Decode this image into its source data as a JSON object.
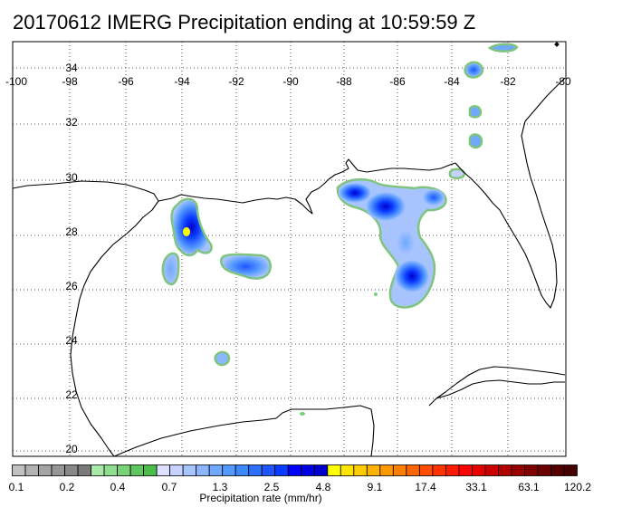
{
  "title": "20170612 IMERG Precipitation ending at 10:59:59 Z",
  "map": {
    "lon_range": [
      -100,
      -80
    ],
    "lat_range": [
      19.6,
      35.3
    ],
    "lon_ticks": [
      "-100",
      "-98",
      "-96",
      "-94",
      "-92",
      "-90",
      "-88",
      "-86",
      "-84",
      "-82",
      "-80"
    ],
    "lat_ticks": [
      "34",
      "32",
      "30",
      "28",
      "26",
      "24",
      "22",
      "20"
    ],
    "grid": "dotted"
  },
  "colorbar": {
    "colors": [
      "#c0c0c0",
      "#b2b2b2",
      "#a4a4a4",
      "#969696",
      "#888888",
      "#7a7a7a",
      "#a8e8a8",
      "#90dd90",
      "#78d278",
      "#60c760",
      "#4cbc4c",
      "#dde0ff",
      "#c8d2ff",
      "#a8c4ff",
      "#8cb6ff",
      "#70a8ff",
      "#5599ff",
      "#3c88ff",
      "#2c70ff",
      "#1f55ff",
      "#0a3cff",
      "#0000ff",
      "#0000e6",
      "#0000cc",
      "#ffff00",
      "#ffe600",
      "#ffcc00",
      "#ffb300",
      "#ff9900",
      "#ff8000",
      "#ff6600",
      "#ff4d00",
      "#ff3300",
      "#ff1a00",
      "#ff0000",
      "#e60000",
      "#cc0000",
      "#b30000",
      "#990000",
      "#800000",
      "#6a0000",
      "#550000",
      "#440000"
    ],
    "labels": [
      "0.1",
      "0.2",
      "0.4",
      "0.7",
      "1.3",
      "2.5",
      "4.8",
      "9.1",
      "17.4",
      "33.1",
      "63.1",
      "120.2"
    ],
    "title": "Precipitation rate (mm/hr)"
  }
}
